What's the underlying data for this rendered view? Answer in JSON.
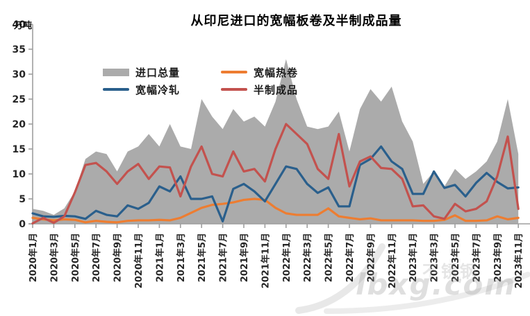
{
  "page": {
    "title": "从印尼进口的宽幅板卷及半制成品量",
    "unit_label": "万吨"
  },
  "watermark": {
    "text": "lbxg.com",
    "cn_text": "不锈钢"
  },
  "legend": [
    {
      "label": "进口总量",
      "color": "#ABABAB",
      "marker": "area-swatch"
    },
    {
      "label": "宽幅热卷",
      "color": "#ED7D31",
      "marker": "line"
    },
    {
      "label": "宽幅冷轧",
      "color": "#2A5F8C",
      "marker": "line"
    },
    {
      "label": "半制成品",
      "color": "#C3524E",
      "marker": "line"
    }
  ],
  "chart_data": {
    "type": "combo",
    "title": "从印尼进口的宽幅板卷及半制成品量",
    "ylabel": "万吨",
    "ylim": [
      0,
      40
    ],
    "y_ticks": [
      0,
      5,
      10,
      15,
      20,
      25,
      30,
      35,
      40
    ],
    "x_tick_every": 2,
    "axis_color": "#9e9e9e",
    "tick_label_color": "#262626",
    "x": [
      "2020年1月",
      "2020年2月",
      "2020年3月",
      "2020年4月",
      "2020年5月",
      "2020年6月",
      "2020年7月",
      "2020年8月",
      "2020年9月",
      "2020年10月",
      "2020年11月",
      "2020年12月",
      "2021年1月",
      "2021年2月",
      "2021年3月",
      "2021年4月",
      "2021年5月",
      "2021年6月",
      "2021年7月",
      "2021年8月",
      "2021年9月",
      "2021年10月",
      "2021年11月",
      "2021年12月",
      "2022年1月",
      "2022年2月",
      "2022年3月",
      "2022年4月",
      "2022年5月",
      "2022年6月",
      "2022年7月",
      "2022年8月",
      "2022年9月",
      "2022年10月",
      "2022年11月",
      "2022年12月",
      "2023年1月",
      "2023年2月",
      "2023年3月",
      "2023年4月",
      "2023年5月",
      "2023年6月",
      "2023年7月",
      "2023年8月",
      "2023年9月",
      "2023年10月",
      "2023年11月"
    ],
    "series": [
      {
        "name": "进口总量",
        "type": "area",
        "color": "#ABABAB",
        "values": [
          3,
          2.6,
          1.8,
          3.1,
          6.5,
          13,
          14.5,
          14,
          10.5,
          14.5,
          15.5,
          18,
          15.5,
          20,
          15.5,
          15,
          25,
          21.5,
          19,
          23,
          20.5,
          21.5,
          19.5,
          24.5,
          33,
          25,
          19.5,
          19,
          19.5,
          22.5,
          14.5,
          23,
          27,
          24.5,
          27.5,
          20.5,
          16.5,
          8,
          10.5,
          7.5,
          11,
          9,
          10.5,
          12.5,
          16.5,
          25,
          14
        ]
      },
      {
        "name": "宽幅热卷",
        "type": "line",
        "color": "#ED7D31",
        "values": [
          1.2,
          0.9,
          0.7,
          0.9,
          0.8,
          0.3,
          0.6,
          0.4,
          0.3,
          0.6,
          0.7,
          0.7,
          0.8,
          0.7,
          1.2,
          2.2,
          3.2,
          3.8,
          4,
          4.3,
          4.8,
          5,
          4.8,
          3.2,
          2.1,
          1.8,
          1.8,
          1.8,
          3.1,
          1.5,
          1.2,
          0.9,
          1.1,
          0.7,
          0.7,
          0.7,
          0.7,
          0.6,
          0.6,
          0.8,
          1.7,
          0.6,
          0.6,
          0.7,
          1.5,
          0.9,
          1.2
        ]
      },
      {
        "name": "宽幅冷轧",
        "type": "line",
        "color": "#2A5F8C",
        "values": [
          2.1,
          1.5,
          1.4,
          1.6,
          1.5,
          1,
          2.6,
          1.8,
          1.5,
          3.7,
          3,
          4.2,
          7.5,
          6.5,
          9.5,
          5,
          5,
          5.5,
          0.5,
          7,
          8,
          6.5,
          4.5,
          8,
          11.5,
          11,
          8,
          6.2,
          7.3,
          3.5,
          3.5,
          11.8,
          13,
          15.5,
          12.5,
          11,
          6,
          6,
          10.5,
          7.2,
          7.8,
          5.5,
          8.2,
          10.2,
          8.4,
          7.1,
          7.3
        ]
      },
      {
        "name": "半制成品",
        "type": "line",
        "color": "#C3524E",
        "values": [
          0.1,
          1.2,
          0.2,
          1.5,
          6.3,
          11.8,
          12.2,
          10.5,
          8,
          10.5,
          12,
          9,
          11.5,
          11.3,
          5.5,
          11.5,
          15.5,
          10,
          9.5,
          14.5,
          10.5,
          11,
          8.5,
          15,
          20,
          18,
          16,
          11,
          9,
          18,
          7.5,
          12.5,
          13.5,
          11.2,
          11,
          9,
          3.5,
          3.7,
          1.5,
          1,
          4,
          2.5,
          3,
          4.5,
          9.5,
          17.5,
          3
        ]
      }
    ]
  }
}
